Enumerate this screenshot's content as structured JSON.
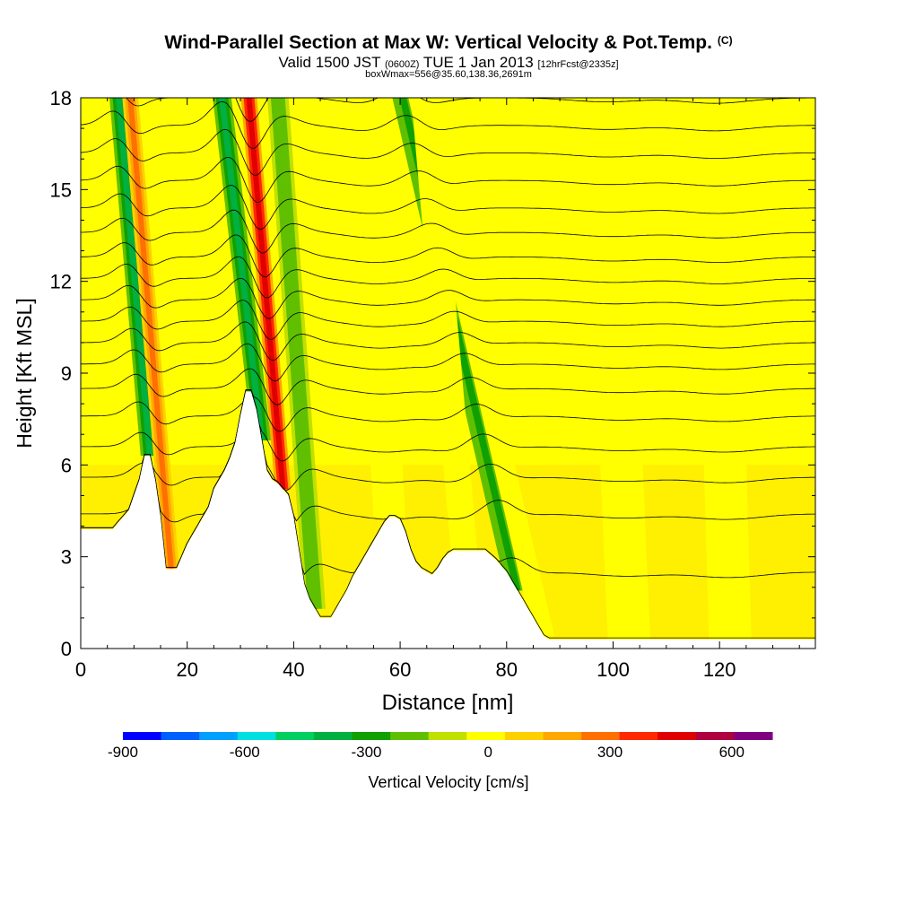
{
  "title": {
    "main": "Wind-Parallel Section at Max W: Vertical Velocity & Pot.Temp.",
    "main_sup": "(C)",
    "valid_prefix": "Valid 1500 JST",
    "valid_utc": "(0600Z)",
    "valid_date": "TUE 1 Jan 2013",
    "forecast": "[12hrFcst@2335z]",
    "box_info": "boxWmax=556@35.60,138.36,2691m"
  },
  "colors": {
    "contour": "#000000",
    "terrain": "#ffffff",
    "frame": "#000000"
  },
  "chart_data": {
    "type": "heatmap",
    "title": "Wind-Parallel Section at Max W: Vertical Velocity & Pot.Temp.",
    "xlabel": "Distance [nm]",
    "ylabel": "Height [Kft MSL]",
    "xlim": [
      0,
      138
    ],
    "ylim": [
      0,
      18
    ],
    "x_ticks": [
      0,
      20,
      40,
      60,
      80,
      100,
      120
    ],
    "y_ticks": [
      0,
      3,
      6,
      9,
      12,
      15,
      18
    ],
    "terrain_profile": {
      "x": [
        0,
        2,
        6,
        9,
        11,
        12,
        13,
        14,
        15,
        16,
        17,
        18,
        20,
        21,
        22,
        23,
        24,
        25,
        26,
        27,
        28,
        29,
        30,
        31,
        32,
        33,
        34,
        35,
        36,
        37,
        38,
        39,
        40,
        41,
        42,
        43,
        44,
        45,
        46,
        47,
        48,
        49,
        50,
        51,
        52,
        53,
        54,
        55,
        56,
        57,
        58,
        59,
        60,
        61,
        62,
        63,
        64,
        65,
        66,
        67,
        68,
        69,
        70,
        72,
        74,
        76,
        78,
        80,
        81,
        82,
        83,
        84,
        85,
        86,
        87,
        88,
        90,
        95,
        100,
        110,
        120,
        130,
        138
      ],
      "height": [
        3.9,
        3.9,
        3.9,
        4.5,
        5.5,
        6.3,
        6.3,
        5.5,
        4.3,
        2.6,
        2.6,
        2.6,
        3.4,
        3.7,
        4.0,
        4.3,
        4.6,
        5.2,
        5.5,
        5.8,
        6.2,
        6.7,
        7.6,
        8.4,
        8.4,
        7.8,
        6.8,
        5.8,
        5.5,
        5.4,
        5.2,
        5.0,
        4.3,
        3.2,
        2.1,
        1.6,
        1.3,
        1.0,
        1.0,
        1.0,
        1.3,
        1.6,
        1.9,
        2.3,
        2.6,
        2.9,
        3.2,
        3.5,
        3.8,
        4.1,
        4.3,
        4.3,
        4.2,
        3.8,
        3.2,
        2.8,
        2.6,
        2.5,
        2.4,
        2.6,
        2.9,
        3.1,
        3.2,
        3.2,
        3.2,
        3.2,
        2.9,
        2.5,
        2.2,
        1.9,
        1.6,
        1.3,
        1.0,
        0.7,
        0.4,
        0.3,
        0.3,
        0.3,
        0.3,
        0.3,
        0.3,
        0.3,
        0.3
      ]
    },
    "vertical_velocity_bands": [
      {
        "x_base": 13,
        "lean": -3.0,
        "width": 3.5,
        "value": -350
      },
      {
        "x_base": 17,
        "lean": -3.0,
        "width": 3.0,
        "value": 320
      },
      {
        "x_base": 34,
        "lean": -4.0,
        "width": 3.5,
        "value": -380
      },
      {
        "x_base": 38,
        "lean": -3.0,
        "width": 3.0,
        "value": 556
      },
      {
        "x_base": 44,
        "lean": -2.5,
        "width": 4.0,
        "value": -150
      },
      {
        "x_base": 82,
        "lean": -8.0,
        "width": 4.0,
        "value": -250
      },
      {
        "x_base": 87,
        "lean": -8.0,
        "width": 4.0,
        "value": 60
      },
      {
        "x_base": 58,
        "lean": -2.0,
        "width": 6.0,
        "value": 80
      },
      {
        "x_base": 72,
        "lean": -3.0,
        "width": 5.0,
        "value": 80
      },
      {
        "x_base": 103,
        "lean": -1.5,
        "width": 8.0,
        "value": 60
      },
      {
        "x_base": 122,
        "lean": -1.0,
        "width": 8.0,
        "value": 80
      }
    ],
    "potential_temperature_contours": {
      "levels": [
        2,
        4,
        6,
        8,
        10,
        12,
        14,
        16,
        18,
        20,
        22,
        24,
        26,
        28,
        30,
        32,
        34,
        36,
        38
      ],
      "base_height_at_x0": [
        0.1,
        2.5,
        4.4,
        5.6,
        6.6,
        7.6,
        8.5,
        9.3,
        10.0,
        10.7,
        11.4,
        12.1,
        12.8,
        13.6,
        14.4,
        15.3,
        16.2,
        17.1,
        18.0
      ]
    },
    "colorbar": {
      "label": "Vertical Velocity [cm/s]",
      "bounds": [
        -900,
        700
      ],
      "step": 100,
      "tick_values": [
        -900,
        -600,
        -300,
        0,
        300,
        600
      ],
      "tick_labels": [
        "-900",
        "-600",
        "-300",
        "0",
        "300",
        "600"
      ],
      "colors": [
        "#0000ff",
        "#0060ff",
        "#00a0ff",
        "#00e0e0",
        "#00d060",
        "#00b040",
        "#10a000",
        "#60c000",
        "#c0e000",
        "#ffff00",
        "#ffd000",
        "#ffa800",
        "#ff7000",
        "#ff2800",
        "#e00000",
        "#b00040",
        "#800080"
      ]
    }
  }
}
